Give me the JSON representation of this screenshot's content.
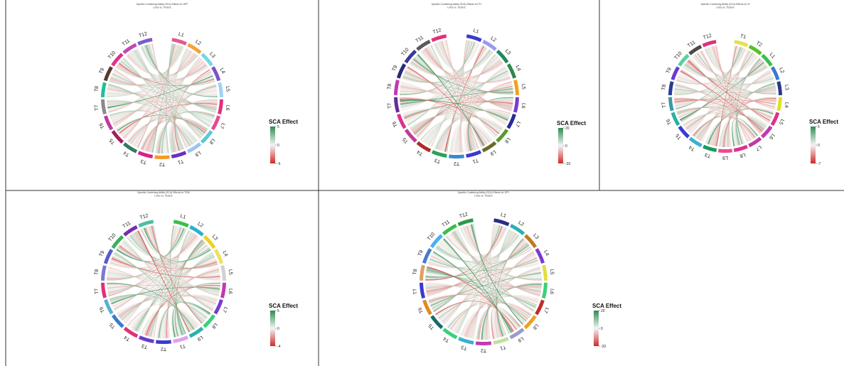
{
  "chart_data": [
    {
      "type": "chord",
      "title": "Specific Combining Ability (SCA) Effects for SPF",
      "subtitle": "Lines vs. Testers",
      "sectors": [
        "L1",
        "L2",
        "L3",
        "L4",
        "L5",
        "L6",
        "L7",
        "L8",
        "L9",
        "T1",
        "T2",
        "T3",
        "T4",
        "T5",
        "T6",
        "T7",
        "T8",
        "T9",
        "T10",
        "T11",
        "T12"
      ],
      "sector_colors": [
        "#e8568a",
        "#f2a33a",
        "#78d6e8",
        "#7b52c9",
        "#9fd3f2",
        "#e0307e",
        "#e84a8f",
        "#5ac8d8",
        "#9dc3f5",
        "#6a2ec2",
        "#f39b2c",
        "#d6228a",
        "#2f7d5d",
        "#a31f5c",
        "#c03a9a",
        "#8a8a8a",
        "#1fbf9a",
        "#5a3a2a",
        "#e0308a",
        "#c04ab0",
        "#7a5ad0"
      ],
      "legend": {
        "title": "SCA Effect",
        "max": 5,
        "mid": 0,
        "min": -5
      }
    },
    {
      "type": "chord",
      "title": "Specific Combining Ability (SCA) Effects for PY",
      "subtitle": "Lines vs. Testers",
      "sectors": [
        "L1",
        "L2",
        "L3",
        "L4",
        "L5",
        "L6",
        "L7",
        "L8",
        "L9",
        "T1",
        "T2",
        "T3",
        "T4",
        "T5",
        "T6",
        "T7",
        "T8",
        "T9",
        "T10",
        "T11",
        "T12"
      ],
      "sector_colors": [
        "#3a3ad0",
        "#9a9af0",
        "#1f8a5a",
        "#2f8a4a",
        "#f0a020",
        "#7a3ad0",
        "#2a2a9a",
        "#5a9a2a",
        "#6a6a2a",
        "#3a3ad0",
        "#3a8ad0",
        "#2aa05a",
        "#b02a2a",
        "#c03a9a",
        "#e0308a",
        "#6a2a9a",
        "#c03ab0",
        "#2a2a7a",
        "#3a3a9a",
        "#5a5a5a",
        "#e0307a"
      ],
      "legend": {
        "title": "SCA Effect",
        "max": 20,
        "mid": 0,
        "min": -20
      }
    },
    {
      "type": "chord",
      "title": "Specific Combining Ability (SCA) Effects for SI",
      "subtitle": "Lines vs. Testers",
      "sectors": [
        "T1",
        "T2",
        "L1",
        "L2",
        "L3",
        "L4",
        "L5",
        "L6",
        "L7",
        "L8",
        "L9",
        "T3",
        "T4",
        "T5",
        "T6",
        "T7",
        "T8",
        "T9",
        "T10",
        "T11",
        "T12"
      ],
      "sector_colors": [
        "#e8e04a",
        "#5ac020",
        "#3ac04a",
        "#3a7ad0",
        "#2a3a8a",
        "#e0e02a",
        "#e0308a",
        "#c03ab0",
        "#c03a9a",
        "#e0308a",
        "#e84a8f",
        "#1a9a5a",
        "#3ab0d0",
        "#3a3ad0",
        "#2ab0a0",
        "#3a9aa0",
        "#2a3a9a",
        "#6a3ad0",
        "#5ad0a0",
        "#4a4a4a",
        "#e0307a"
      ],
      "legend": {
        "title": "SCA Effect",
        "max": 5,
        "mid": 0,
        "min": -7
      }
    },
    {
      "type": "chord",
      "title": "Specific Combining Ability (SCA) Effects for TSW",
      "subtitle": "Lines vs. Testers",
      "sectors": [
        "L1",
        "L2",
        "L3",
        "L4",
        "L5",
        "L6",
        "L7",
        "L8",
        "L9",
        "T1",
        "T2",
        "T3",
        "T4",
        "T5",
        "T6",
        "T7",
        "T8",
        "T9",
        "T10",
        "T11",
        "T12"
      ],
      "sector_colors": [
        "#3ac04a",
        "#2ab0d0",
        "#f0d020",
        "#f0e060",
        "#d0d0d0",
        "#c03ab0",
        "#7a3ad0",
        "#3ad07a",
        "#2ab0b0",
        "#e0a0f0",
        "#3a3ad0",
        "#6a3ad0",
        "#e0307a",
        "#3a7ad0",
        "#5ab0d0",
        "#e0307a",
        "#7a7ad0",
        "#5a5ad0",
        "#3ab05a",
        "#7a2ab0",
        "#4ac0a0"
      ],
      "legend": {
        "title": "SCA Effect",
        "max": 5,
        "mid": 0,
        "min": -4
      }
    },
    {
      "type": "chord",
      "title": "Specific Combining Ability (SCA) Effects for SPY",
      "subtitle": "Lines vs. Testers",
      "sectors": [
        "L1",
        "L2",
        "L3",
        "L4",
        "L5",
        "L6",
        "L7",
        "L8",
        "L9",
        "T1",
        "T2",
        "T3",
        "T4",
        "T5",
        "T6",
        "T7",
        "T8",
        "T9",
        "T10",
        "T11",
        "T12"
      ],
      "sector_colors": [
        "#2a2a8a",
        "#2ab0b0",
        "#c07a20",
        "#7a3ad0",
        "#e0e040",
        "#3ad07a",
        "#c02a2a",
        "#f0a020",
        "#9a9ad0",
        "#c0e0a0",
        "#c03ab0",
        "#3ab0d0",
        "#3ad07a",
        "#1a6a6a",
        "#e08a20",
        "#3a3ad0",
        "#e0a060",
        "#4a7ad0",
        "#4ab0f0",
        "#3ac04a",
        "#2a9a4a"
      ],
      "legend": {
        "title": "SCA Effect",
        "max": 20,
        "mid": 0,
        "min": -20
      }
    }
  ]
}
